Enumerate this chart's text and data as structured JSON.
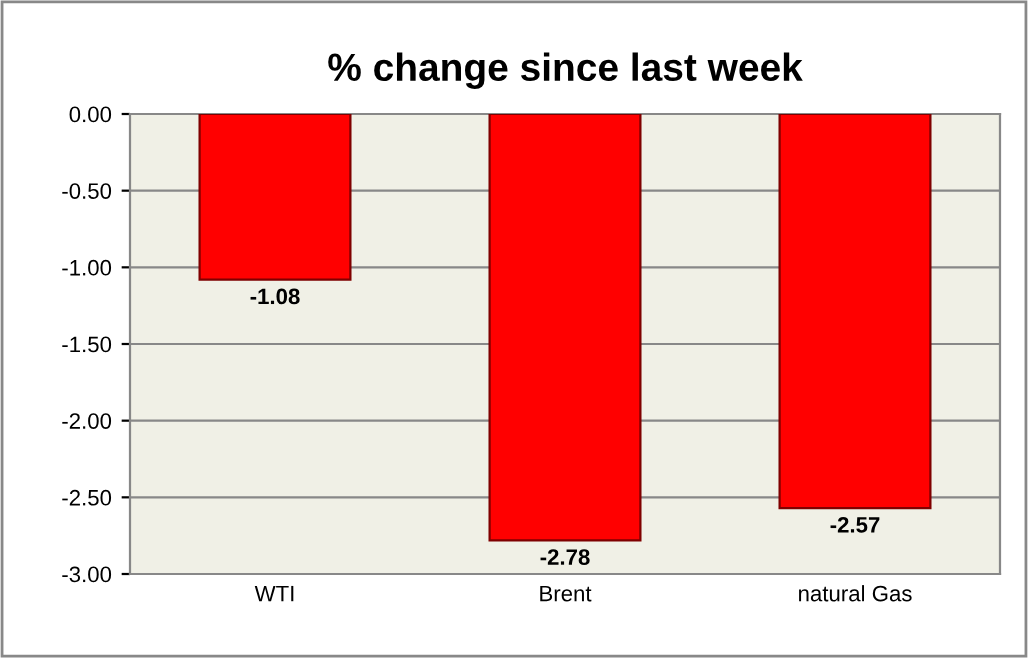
{
  "chart_data": {
    "type": "bar",
    "title": "% change since last week",
    "categories": [
      "WTI",
      "Brent",
      "natural Gas"
    ],
    "values": [
      -1.08,
      -2.78,
      -2.57
    ],
    "color": "#ff0000",
    "ylim": [
      -3,
      0
    ],
    "yticks": [
      {
        "value": -3,
        "label": "-3.00"
      },
      {
        "value": -2.5,
        "label": "-2.50"
      },
      {
        "value": -2,
        "label": "-2.00"
      },
      {
        "value": -1.5,
        "label": "-1.50"
      },
      {
        "value": -1,
        "label": "-1.00"
      },
      {
        "value": -0.5,
        "label": "-0.50"
      },
      {
        "value": 0,
        "label": "0.00"
      }
    ],
    "grid": "y",
    "data_labels": true
  }
}
